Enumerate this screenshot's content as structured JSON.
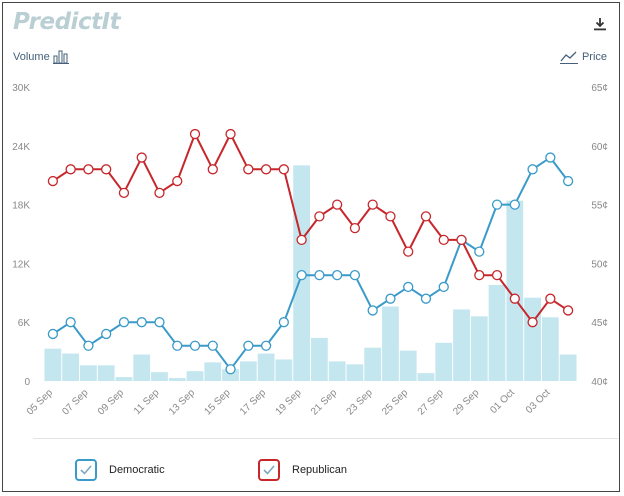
{
  "brand": {
    "logo_text": "PredictIt"
  },
  "toolbar": {
    "volume_label": "Volume",
    "price_label": "Price"
  },
  "icons": {
    "download": "download-icon",
    "volume": "bar-chart-icon",
    "price": "line-chart-icon"
  },
  "colors": {
    "democratic": "#3a9ac9",
    "republican": "#c7262b",
    "volume_bar": "#c3e6ef",
    "axis_text": "#888888"
  },
  "legend": {
    "democratic_label": "Democratic",
    "republican_label": "Republican"
  },
  "chart_data": {
    "type": "line",
    "categories": [
      "05 Sep",
      "06 Sep",
      "07 Sep",
      "08 Sep",
      "09 Sep",
      "10 Sep",
      "11 Sep",
      "12 Sep",
      "13 Sep",
      "14 Sep",
      "15 Sep",
      "16 Sep",
      "17 Sep",
      "18 Sep",
      "19 Sep",
      "20 Sep",
      "21 Sep",
      "22 Sep",
      "23 Sep",
      "24 Sep",
      "25 Sep",
      "26 Sep",
      "27 Sep",
      "28 Sep",
      "29 Sep",
      "30 Sep",
      "01 Oct",
      "02 Oct",
      "03 Oct",
      "04 Oct"
    ],
    "x_tick_labels": [
      "05 Sep",
      "07 Sep",
      "09 Sep",
      "11 Sep",
      "13 Sep",
      "15 Sep",
      "17 Sep",
      "19 Sep",
      "21 Sep",
      "23 Sep",
      "25 Sep",
      "27 Sep",
      "29 Sep",
      "01 Oct",
      "03 Oct"
    ],
    "series": [
      {
        "name": "Democratic",
        "axis": "right",
        "unit": "¢",
        "values": [
          44,
          45,
          43,
          44,
          45,
          45,
          45,
          43,
          43,
          43,
          41,
          43,
          43,
          45,
          49,
          49,
          49,
          49,
          46,
          47,
          48,
          47,
          48,
          52,
          51,
          55,
          55,
          58,
          59,
          57
        ]
      },
      {
        "name": "Republican",
        "axis": "right",
        "unit": "¢",
        "values": [
          57,
          58,
          58,
          58,
          56,
          59,
          56,
          57,
          61,
          58,
          61,
          58,
          58,
          58,
          52,
          54,
          55,
          53,
          55,
          54,
          51,
          54,
          52,
          52,
          49,
          49,
          47,
          45,
          47,
          46
        ]
      }
    ],
    "volume": {
      "name": "Volume",
      "axis": "left",
      "values": [
        3300,
        2800,
        1600,
        1600,
        400,
        2700,
        900,
        300,
        1000,
        1900,
        1200,
        2000,
        2800,
        2200,
        22000,
        4400,
        2000,
        1700,
        3400,
        7600,
        3100,
        800,
        3900,
        7300,
        6600,
        9800,
        18400,
        8500,
        6500,
        2700
      ]
    },
    "left_axis": {
      "label": "Volume",
      "ylim": [
        0,
        30000
      ],
      "ticks": [
        "0",
        "6K",
        "12K",
        "18K",
        "24K",
        "30K"
      ]
    },
    "right_axis": {
      "label": "Price",
      "ylim": [
        40,
        65
      ],
      "ticks": [
        "40¢",
        "45¢",
        "50¢",
        "55¢",
        "60¢",
        "65¢"
      ]
    },
    "grid": false,
    "legend_position": "bottom"
  }
}
